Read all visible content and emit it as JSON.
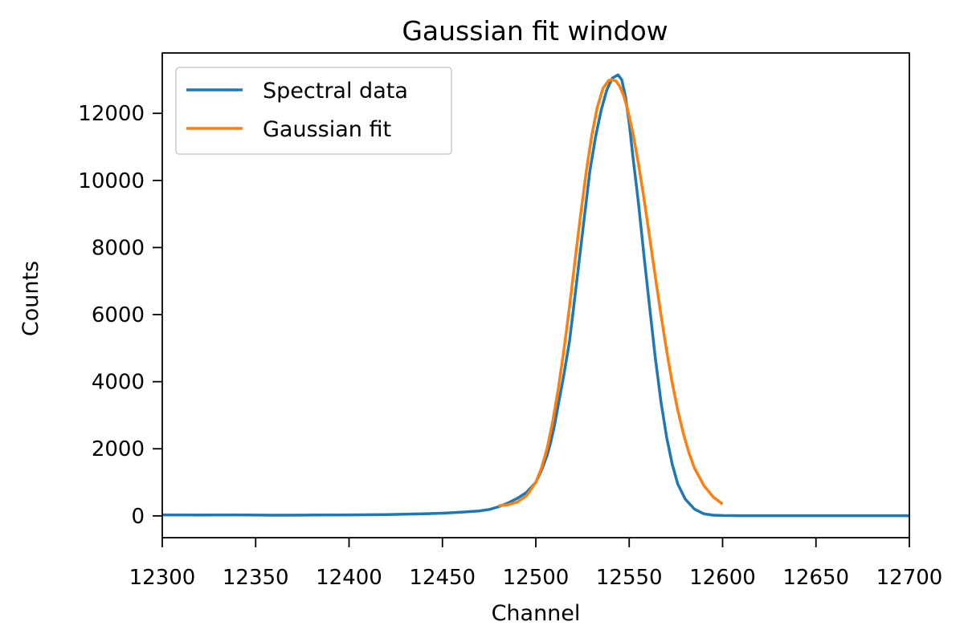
{
  "chart_data": {
    "type": "line",
    "title": "Gaussian fit window",
    "xlabel": "Channel",
    "ylabel": "Counts",
    "xlim": [
      12300,
      12700
    ],
    "ylim": [
      -650,
      13800
    ],
    "xticks": [
      "12300",
      "12350",
      "12400",
      "12450",
      "12500",
      "12550",
      "12600",
      "12650",
      "12700"
    ],
    "yticks": [
      "0",
      "2000",
      "4000",
      "6000",
      "8000",
      "10000",
      "12000"
    ],
    "grid": false,
    "legend_position": "top-left",
    "series": [
      {
        "name": "Spectral data",
        "color": "#1f77b4",
        "x": [
          12300,
          12320,
          12340,
          12360,
          12380,
          12400,
          12420,
          12440,
          12450,
          12460,
          12470,
          12475,
          12480,
          12485,
          12490,
          12495,
          12500,
          12503,
          12506,
          12508,
          12510,
          12512,
          12515,
          12518,
          12520,
          12523,
          12526,
          12529,
          12532,
          12535,
          12538,
          12541,
          12544,
          12546,
          12548,
          12550,
          12552,
          12555,
          12558,
          12561,
          12564,
          12567,
          12570,
          12573,
          12576,
          12580,
          12585,
          12590,
          12595,
          12600,
          12610,
          12620,
          12640,
          12660,
          12680,
          12700
        ],
        "y": [
          30,
          25,
          30,
          20,
          25,
          30,
          40,
          60,
          80,
          110,
          150,
          190,
          270,
          380,
          520,
          700,
          1000,
          1350,
          1800,
          2200,
          2700,
          3300,
          4200,
          5200,
          6100,
          7500,
          8900,
          10300,
          11300,
          12100,
          12700,
          13050,
          13150,
          13000,
          12500,
          11700,
          10700,
          9300,
          7700,
          6200,
          4700,
          3400,
          2350,
          1550,
          950,
          500,
          200,
          60,
          20,
          10,
          5,
          5,
          5,
          5,
          5,
          5
        ]
      },
      {
        "name": "Gaussian fit",
        "color": "#ff7f0e",
        "x": [
          12480,
          12485,
          12490,
          12495,
          12500,
          12503,
          12506,
          12509,
          12512,
          12515,
          12518,
          12521,
          12524,
          12527,
          12530,
          12533,
          12536,
          12539,
          12541,
          12543,
          12545,
          12547,
          12549,
          12552,
          12555,
          12558,
          12561,
          12564,
          12567,
          12570,
          12573,
          12576,
          12579,
          12582,
          12585,
          12590,
          12595,
          12600
        ],
        "y": [
          303,
          330,
          410,
          600,
          1000,
          1420,
          2010,
          2800,
          3780,
          4930,
          6230,
          7610,
          8990,
          10270,
          11370,
          12200,
          12750,
          12980,
          13000,
          12960,
          12800,
          12530,
          12160,
          11400,
          10480,
          9420,
          8280,
          7120,
          5990,
          4930,
          3980,
          3150,
          2450,
          1880,
          1420,
          900,
          560,
          350
        ]
      }
    ]
  }
}
